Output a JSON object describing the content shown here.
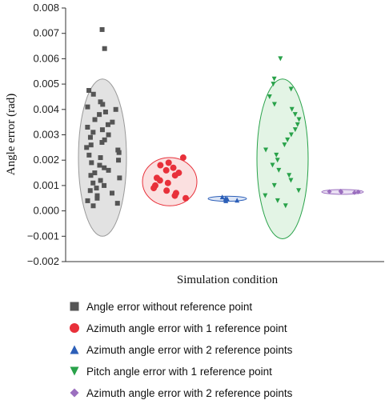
{
  "chart_data": {
    "type": "scatter",
    "title": "",
    "xlabel": "Simulation condition",
    "ylabel": "Angle error (rad)",
    "ylim": [
      -0.002,
      0.008
    ],
    "yticks": [
      "0.008",
      "0.007",
      "0.006",
      "0.005",
      "0.004",
      "0.003",
      "0.002",
      "0.001",
      "0.000",
      "−0.001",
      "−0.002"
    ],
    "ytick_values": [
      0.008,
      0.007,
      0.006,
      0.005,
      0.004,
      0.003,
      0.002,
      0.001,
      0.0,
      -0.001,
      -0.002
    ],
    "grid": false,
    "legend_position": "bottom",
    "series": [
      {
        "name": "Angle error without reference point",
        "marker": "square",
        "color": "#555555",
        "x_position": 1,
        "values": [
          0.00715,
          0.0064,
          0.00475,
          0.0046,
          0.0043,
          0.0042,
          0.0041,
          0.004,
          0.0039,
          0.0038,
          0.0036,
          0.0035,
          0.0034,
          0.0033,
          0.0032,
          0.0031,
          0.003,
          0.0029,
          0.0028,
          0.0027,
          0.0026,
          0.0025,
          0.0024,
          0.0023,
          0.0022,
          0.0021,
          0.002,
          0.0019,
          0.0018,
          0.0017,
          0.0016,
          0.0015,
          0.0014,
          0.0013,
          0.0012,
          0.0011,
          0.001,
          0.0009,
          0.0008,
          0.0007,
          0.0006,
          0.0005,
          0.0004,
          0.0003,
          0.0002
        ]
      },
      {
        "name": "Azimuth angle error with 1 reference point",
        "marker": "circle",
        "color": "#e8303a",
        "x_position": 2,
        "values": [
          0.0021,
          0.0019,
          0.0018,
          0.0017,
          0.0016,
          0.0015,
          0.0014,
          0.0013,
          0.0012,
          0.0011,
          0.001,
          0.0009,
          0.0008,
          0.0007,
          0.0006,
          0.0005
        ]
      },
      {
        "name": "Azimuth angle error with 2 reference points",
        "marker": "triangle-up",
        "color": "#2c5fb8",
        "x_position": 3,
        "values": [
          0.00055,
          0.0005,
          0.00048,
          0.00045,
          0.00042,
          0.0004
        ]
      },
      {
        "name": "Pitch angle error with 1 reference point",
        "marker": "triangle-down",
        "color": "#29a24a",
        "x_position": 4,
        "values": [
          0.006,
          0.0052,
          0.005,
          0.0048,
          0.0045,
          0.0042,
          0.004,
          0.0038,
          0.0036,
          0.0034,
          0.0032,
          0.003,
          0.0028,
          0.0026,
          0.0024,
          0.0022,
          0.002,
          0.0018,
          0.0016,
          0.0014,
          0.0012,
          0.001,
          0.0008,
          0.0006,
          0.0004,
          0.0002
        ]
      },
      {
        "name": "Azimuth angle error with 2 reference points",
        "marker": "diamond",
        "color": "#9b6fbf",
        "x_position": 5,
        "values": [
          0.00078,
          0.00076,
          0.00075,
          0.00074,
          0.00072
        ]
      }
    ],
    "ellipses": [
      {
        "series": 0,
        "center": 0.0021,
        "half_range": 0.0031,
        "fill": "#e2e2e2",
        "stroke": "#999999"
      },
      {
        "series": 1,
        "center": 0.00115,
        "half_range": 0.00095,
        "fill": "#fbe0e0",
        "stroke": "#e8303a"
      },
      {
        "series": 2,
        "center": 0.00048,
        "half_range": 0.0001,
        "fill": "#dde6f6",
        "stroke": "#2c5fb8"
      },
      {
        "series": 3,
        "center": 0.00205,
        "half_range": 0.00315,
        "fill": "#e3f4e5",
        "stroke": "#29a24a"
      },
      {
        "series": 4,
        "center": 0.00075,
        "half_range": 4e-05,
        "fill": "#eadff3",
        "stroke": "#9b6fbf"
      }
    ]
  }
}
